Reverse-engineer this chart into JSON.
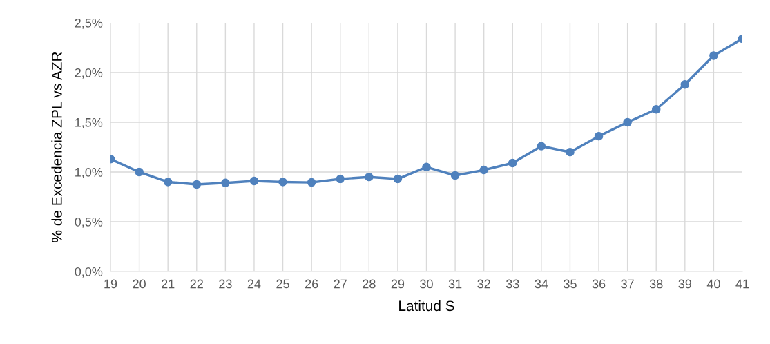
{
  "chart_data": {
    "type": "line",
    "xlabel": "Latitud S",
    "ylabel": "% de Excedencia ZPL vs AZR",
    "x": [
      19,
      20,
      21,
      22,
      23,
      24,
      25,
      26,
      27,
      28,
      29,
      30,
      31,
      32,
      33,
      34,
      35,
      36,
      37,
      38,
      39,
      40,
      41
    ],
    "series": [
      {
        "color": "#4f81bd",
        "values": [
          1.13,
          1.0,
          0.9,
          0.875,
          0.89,
          0.91,
          0.9,
          0.895,
          0.93,
          0.95,
          0.93,
          1.05,
          0.965,
          1.02,
          1.09,
          1.26,
          1.2,
          1.36,
          1.5,
          1.63,
          1.88,
          2.17,
          2.34
        ]
      }
    ],
    "xlim": [
      19,
      41
    ],
    "xticks": [
      19,
      20,
      21,
      22,
      23,
      24,
      25,
      26,
      27,
      28,
      29,
      30,
      31,
      32,
      33,
      34,
      35,
      36,
      37,
      38,
      39,
      40,
      41
    ],
    "ylim": [
      0,
      2.5
    ],
    "yticks": [
      {
        "value": 0,
        "label": "0,0%"
      },
      {
        "value": 0.5,
        "label": "0,5%"
      },
      {
        "value": 1.0,
        "label": "1,0%"
      },
      {
        "value": 1.5,
        "label": "1,5%"
      },
      {
        "value": 2.0,
        "label": "2,0%"
      },
      {
        "value": 2.5,
        "label": "2,5%"
      }
    ],
    "grid": true,
    "marker": "circle",
    "line_style": "solid"
  }
}
